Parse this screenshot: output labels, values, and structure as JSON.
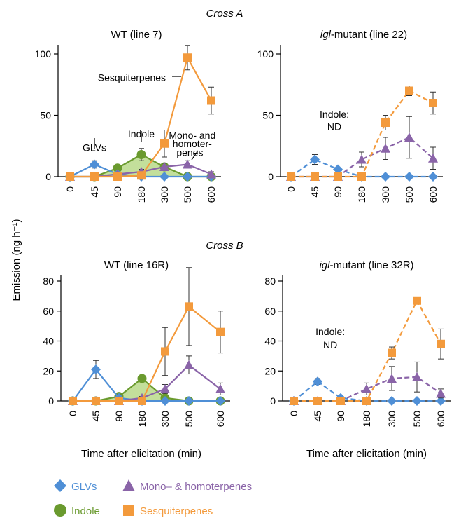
{
  "figure": {
    "cross_a_title": "Cross A",
    "cross_b_title": "Cross B",
    "ylabel": "Emission (ng h⁻¹)",
    "xlabel": "Time after elicitation (min)"
  },
  "colors": {
    "glvs": "#4f8fd6",
    "indole": "#6a9a2e",
    "indole_fill": "#b9d98a",
    "mono": "#8a64a8",
    "sesq": "#f39a3c"
  },
  "chart_data": [
    {
      "type": "line",
      "title_prefix": "",
      "title_italic": "",
      "title_suffix": "WT (line 7)",
      "categories": [
        "0",
        "45",
        "90",
        "180",
        "300",
        "500",
        "600"
      ],
      "ylim": [
        0,
        100
      ],
      "yticks": [
        0,
        50,
        100
      ],
      "dashed": false,
      "indole_area": true,
      "series": [
        {
          "name": "GLVs",
          "key": "glvs",
          "values": [
            0,
            10,
            2,
            0,
            0,
            0,
            0
          ],
          "errors": [
            0,
            3,
            0,
            0,
            0,
            0,
            0
          ]
        },
        {
          "name": "Indole",
          "key": "indole",
          "values": [
            0,
            0,
            7,
            18,
            8,
            0,
            0
          ],
          "errors": [
            0,
            0,
            0,
            5,
            2,
            0,
            0
          ]
        },
        {
          "name": "Mono- & homoterpenes",
          "key": "mono",
          "values": [
            0,
            0,
            2,
            4,
            8,
            10,
            2
          ],
          "errors": [
            0,
            0,
            0,
            2,
            3,
            3,
            2
          ]
        },
        {
          "name": "Sesquiterpenes",
          "key": "sesq",
          "values": [
            0,
            0,
            0,
            1,
            27,
            97,
            62
          ],
          "errors": [
            0,
            0,
            0,
            0,
            11,
            10,
            11
          ]
        }
      ],
      "annotations": [
        {
          "text": "GLVs",
          "x": 1,
          "y": 21
        },
        {
          "text": "Indole",
          "x": 3,
          "y": 32
        },
        {
          "text": "Sesquiterpenes",
          "x": 2.6,
          "y": 78
        },
        {
          "text": "Mono- and",
          "x": 5.2,
          "y": 31
        },
        {
          "text": "homoter-",
          "x": 5.2,
          "y": 24
        },
        {
          "text": "penes",
          "x": 5.1,
          "y": 17
        }
      ]
    },
    {
      "type": "line",
      "title_prefix": "",
      "title_italic": "igl",
      "title_suffix": "-mutant (line 22)",
      "categories": [
        "0",
        "45",
        "90",
        "180",
        "300",
        "500",
        "600"
      ],
      "ylim": [
        0,
        100
      ],
      "yticks": [
        0,
        50,
        100
      ],
      "dashed": true,
      "indole_area": false,
      "series": [
        {
          "name": "GLVs",
          "key": "glvs",
          "values": [
            0,
            14,
            6,
            0,
            0,
            0,
            0
          ],
          "errors": [
            0,
            4,
            1,
            0,
            0,
            0,
            0
          ]
        },
        {
          "name": "Mono- & homoterpenes",
          "key": "mono",
          "values": [
            0,
            0,
            0,
            14,
            23,
            32,
            15
          ],
          "errors": [
            0,
            0,
            0,
            6,
            9,
            17,
            9
          ]
        },
        {
          "name": "Sesquiterpenes",
          "key": "sesq",
          "values": [
            0,
            0,
            0,
            0,
            44,
            70,
            60
          ],
          "errors": [
            0,
            0,
            0,
            0,
            6,
            4,
            9
          ]
        }
      ],
      "annotations": [
        {
          "text": "Indole:",
          "x": 1.85,
          "y": 48
        },
        {
          "text": "ND",
          "x": 1.85,
          "y": 38
        }
      ]
    },
    {
      "type": "line",
      "title_prefix": "",
      "title_italic": "",
      "title_suffix": "WT (line 16R)",
      "categories": [
        "0",
        "45",
        "90",
        "180",
        "300",
        "500",
        "600"
      ],
      "ylim": [
        0,
        80
      ],
      "yticks": [
        0,
        20,
        40,
        60,
        80
      ],
      "dashed": false,
      "indole_area": true,
      "series": [
        {
          "name": "GLVs",
          "key": "glvs",
          "values": [
            0,
            21,
            2,
            0,
            0,
            0,
            0
          ],
          "errors": [
            0,
            6,
            2,
            0,
            0,
            0,
            0
          ]
        },
        {
          "name": "Indole",
          "key": "indole",
          "values": [
            0,
            0,
            3,
            15,
            2,
            0,
            0
          ],
          "errors": [
            0,
            0,
            0,
            0,
            0,
            0,
            0
          ]
        },
        {
          "name": "Mono- & homoterpenes",
          "key": "mono",
          "values": [
            0,
            0,
            0,
            2,
            8,
            24,
            8
          ],
          "errors": [
            0,
            0,
            0,
            1,
            3,
            6,
            4
          ]
        },
        {
          "name": "Sesquiterpenes",
          "key": "sesq",
          "values": [
            0,
            0,
            0,
            0,
            33,
            63,
            46
          ],
          "errors": [
            0,
            0,
            0,
            0,
            16,
            26,
            14
          ]
        }
      ],
      "annotations": []
    },
    {
      "type": "line",
      "title_prefix": "",
      "title_italic": "igl",
      "title_suffix": "-mutant (line 32R)",
      "categories": [
        "0",
        "45",
        "90",
        "180",
        "300",
        "500",
        "600"
      ],
      "ylim": [
        0,
        80
      ],
      "yticks": [
        0,
        20,
        40,
        60,
        80
      ],
      "dashed": true,
      "indole_area": false,
      "series": [
        {
          "name": "GLVs",
          "key": "glvs",
          "values": [
            0,
            13,
            2,
            0,
            0,
            0,
            0
          ],
          "errors": [
            0,
            2,
            1,
            0,
            0,
            0,
            0
          ]
        },
        {
          "name": "Mono- & homoterpenes",
          "key": "mono",
          "values": [
            0,
            0,
            0,
            8,
            15,
            16,
            5
          ],
          "errors": [
            0,
            0,
            0,
            4,
            8,
            10,
            3
          ]
        },
        {
          "name": "Sesquiterpenes",
          "key": "sesq",
          "values": [
            0,
            0,
            0,
            0,
            32,
            67,
            38
          ],
          "errors": [
            0,
            0,
            0,
            0,
            4,
            0,
            10
          ]
        }
      ],
      "annotations": [
        {
          "text": "Indole:",
          "x": 1.55,
          "y": 44
        },
        {
          "text": "ND",
          "x": 1.55,
          "y": 35
        }
      ]
    }
  ],
  "legend": [
    {
      "key": "glvs",
      "label": "GLVs",
      "marker": "diamond"
    },
    {
      "key": "mono",
      "label": "Mono– & homoterpenes",
      "marker": "triangle"
    },
    {
      "key": "indole",
      "label": "Indole",
      "marker": "circle"
    },
    {
      "key": "sesq",
      "label": "Sesquiterpenes",
      "marker": "square"
    }
  ]
}
